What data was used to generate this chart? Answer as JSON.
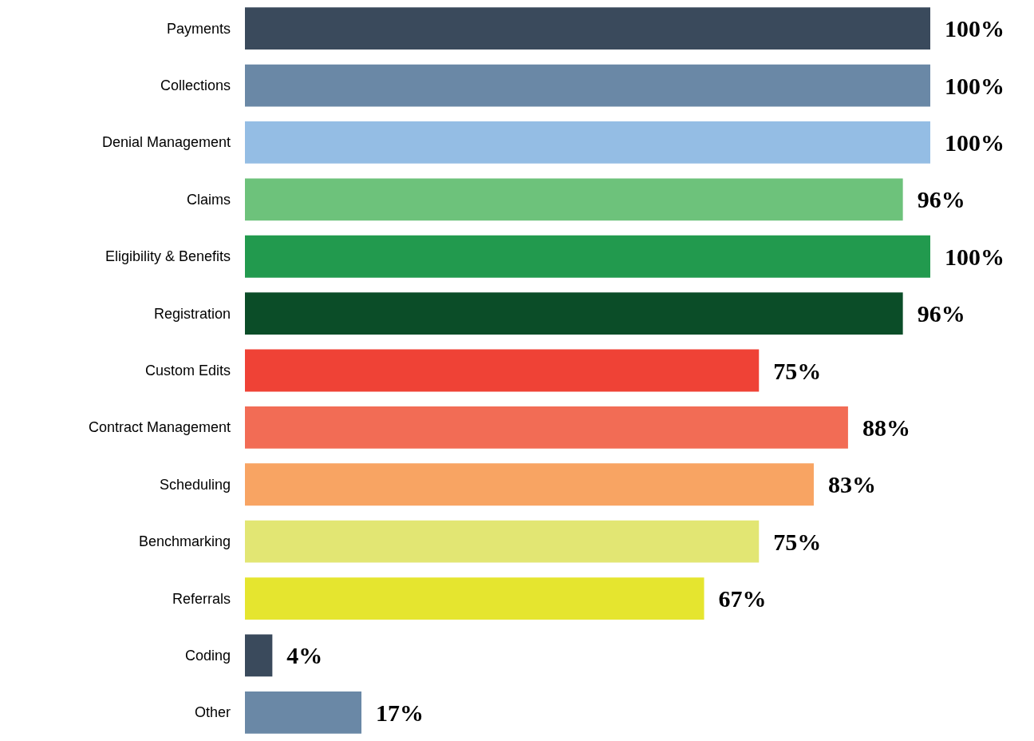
{
  "chart_data": {
    "type": "bar",
    "orientation": "horizontal",
    "categories": [
      "Payments",
      "Collections",
      "Denial Management",
      "Claims",
      "Eligibility & Benefits",
      "Registration",
      "Custom Edits",
      "Contract Management",
      "Scheduling",
      "Benchmarking",
      "Referrals",
      "Coding",
      "Other"
    ],
    "values": [
      100,
      100,
      100,
      96,
      100,
      96,
      75,
      88,
      83,
      75,
      67,
      4,
      17
    ],
    "value_labels": [
      "100%",
      "100%",
      "100%",
      "96%",
      "100%",
      "96%",
      "75%",
      "88%",
      "83%",
      "75%",
      "67%",
      "4%",
      "17%"
    ],
    "colors": [
      "#3a4a5c",
      "#6a88a6",
      "#94bde4",
      "#6dc27b",
      "#229a4e",
      "#0b4d28",
      "#ef4236",
      "#f26c55",
      "#f8a463",
      "#e2e673",
      "#e5e52f",
      "#3a4a5c",
      "#6a88a6"
    ],
    "grid": false
  }
}
